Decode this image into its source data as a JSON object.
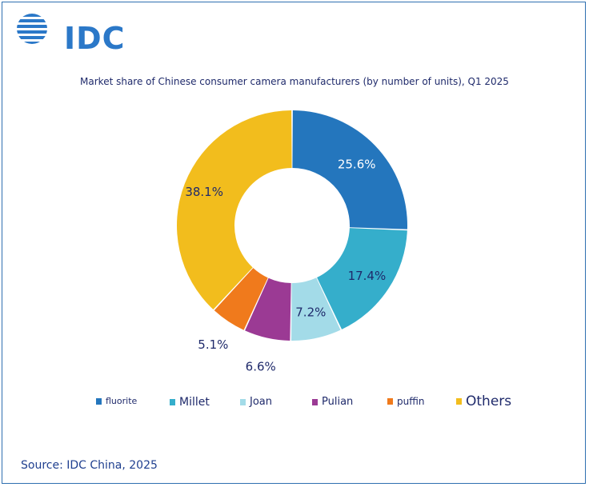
{
  "logo": {
    "text": "IDC",
    "color": "#2b78c8"
  },
  "source": "Source: IDC China, 2025",
  "chart_data": {
    "type": "pie",
    "style": "donut",
    "title": "Market share of Chinese consumer camera manufacturers (by number of units), Q1 2025",
    "categories": [
      "fluorite",
      "Millet",
      "Joan",
      "Pulian",
      "puffin",
      "Others"
    ],
    "values": [
      25.6,
      17.4,
      7.2,
      6.6,
      5.1,
      38.1
    ],
    "labels": [
      "25.6%",
      "17.4%",
      "7.2%",
      "6.6%",
      "5.1%",
      "38.1%"
    ],
    "colors": [
      "#2476bd",
      "#35aecb",
      "#a3dbe8",
      "#9b3a94",
      "#f07a1c",
      "#f2bd1d"
    ],
    "legend_position": "bottom"
  }
}
